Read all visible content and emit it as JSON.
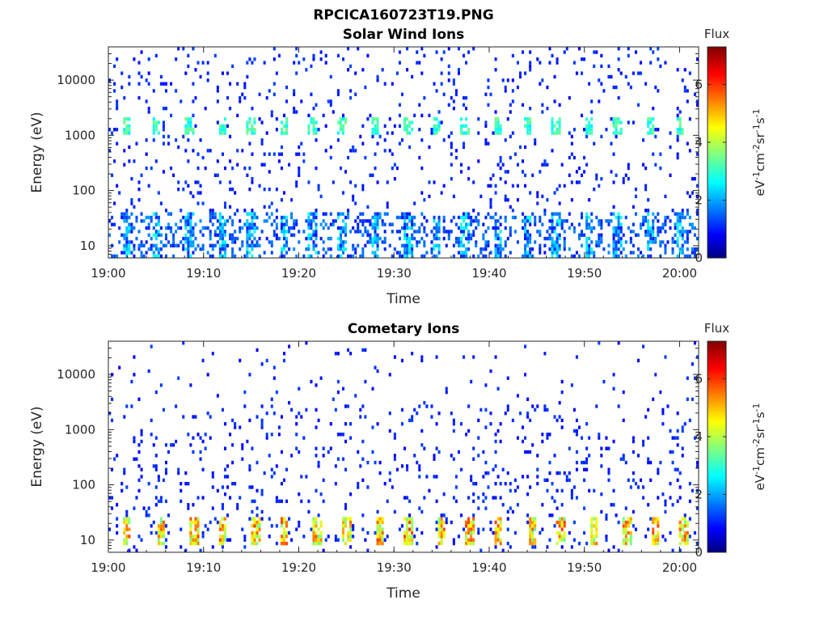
{
  "figure_title": "RPCICA160723T19.PNG",
  "chart_data": [
    {
      "type": "heatmap",
      "title": "Solar Wind Ions",
      "xlabel": "Time",
      "ylabel": "Energy (eV)",
      "x_ticks": [
        "19:00",
        "19:10",
        "19:20",
        "19:30",
        "19:40",
        "19:50",
        "20:00"
      ],
      "y_ticks": [
        "10",
        "100",
        "1000",
        "10000"
      ],
      "y_scale": "log",
      "xlim": [
        "19:00",
        "20:02"
      ],
      "ylim": [
        6,
        40000
      ],
      "colorbar": {
        "label": "eV-1cm-2sr-1s-1",
        "title": "Flux",
        "ticks": [
          "0",
          "2",
          "4",
          "6"
        ],
        "range": [
          0,
          7.3
        ]
      },
      "features": {
        "bursts_at_minutes": [
          2,
          5,
          8.5,
          12,
          15,
          18.5,
          21.5,
          24.5,
          28,
          31.5,
          34.5,
          37.5,
          41,
          44,
          47,
          50.5,
          53.5,
          57,
          60
        ],
        "burst_energy_ev": [
          1000,
          2000
        ],
        "burst_flux": 2.6,
        "background_flux": 0.9
      }
    },
    {
      "type": "heatmap",
      "title": "Cometary Ions",
      "xlabel": "Time",
      "ylabel": "Energy (eV)",
      "x_ticks": [
        "19:00",
        "19:10",
        "19:20",
        "19:30",
        "19:40",
        "19:50",
        "20:00"
      ],
      "y_ticks": [
        "10",
        "100",
        "1000",
        "10000"
      ],
      "y_scale": "log",
      "xlim": [
        "19:00",
        "20:02"
      ],
      "ylim": [
        6,
        40000
      ],
      "colorbar": {
        "label": "eV-1cm-2sr-1s-1",
        "title": "Flux",
        "ticks": [
          "0",
          "2",
          "4",
          "6"
        ],
        "range": [
          0,
          7.3
        ]
      },
      "features": {
        "bursts_at_minutes": [
          2,
          5.5,
          9,
          12,
          15.5,
          18.5,
          22,
          25,
          28.5,
          31.5,
          35,
          38,
          41,
          44.5,
          47.5,
          51,
          54.5,
          57.5,
          60.5
        ],
        "burst_energy_ev": [
          8,
          25
        ],
        "burst_flux": 3.5,
        "background_flux": 0.9
      }
    }
  ]
}
